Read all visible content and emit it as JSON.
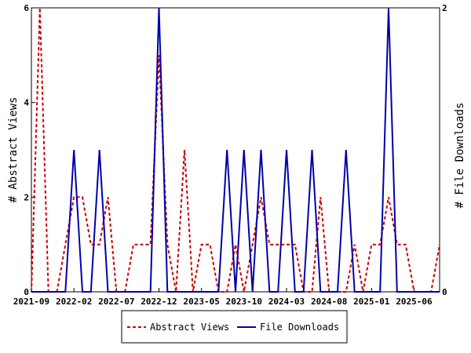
{
  "chart_data": {
    "type": "line",
    "x_labels": [
      "2021-09",
      "2022-02",
      "2022-07",
      "2022-12",
      "2023-05",
      "2023-10",
      "2024-03",
      "2024-08",
      "2025-01",
      "2025-06"
    ],
    "left_axis": {
      "label": "# Abstract Views",
      "ylim": [
        0,
        6
      ],
      "ticks": [
        0,
        2,
        4,
        6
      ]
    },
    "right_axis": {
      "label": "# File Downloads",
      "ylim": [
        0,
        2
      ],
      "ticks": [
        0,
        2
      ]
    },
    "series": [
      {
        "name": "Abstract Views",
        "axis": "left",
        "color": "#cc0000",
        "style": "dashed",
        "values": [
          0,
          6,
          0,
          0,
          1,
          2,
          2,
          1,
          1,
          2,
          0,
          0,
          1,
          1,
          1,
          5,
          1,
          0,
          3,
          0,
          1,
          1,
          0,
          0,
          1,
          0,
          1,
          2,
          1,
          1,
          1,
          1,
          0,
          0,
          2,
          0,
          0,
          0,
          1,
          0,
          1,
          1,
          2,
          1,
          1,
          0,
          0,
          0,
          1
        ]
      },
      {
        "name": "File Downloads",
        "axis": "right",
        "color": "#0000aa",
        "style": "solid",
        "values": [
          0,
          0,
          0,
          0,
          0,
          1,
          0,
          0,
          1,
          0,
          0,
          0,
          0,
          0,
          0,
          2,
          0,
          0,
          0,
          0,
          0,
          0,
          0,
          1,
          0,
          1,
          0,
          1,
          0,
          0,
          1,
          0,
          0,
          1,
          0,
          0,
          0,
          1,
          0,
          0,
          0,
          0,
          2,
          0,
          0,
          0,
          0,
          0,
          0
        ]
      }
    ]
  }
}
